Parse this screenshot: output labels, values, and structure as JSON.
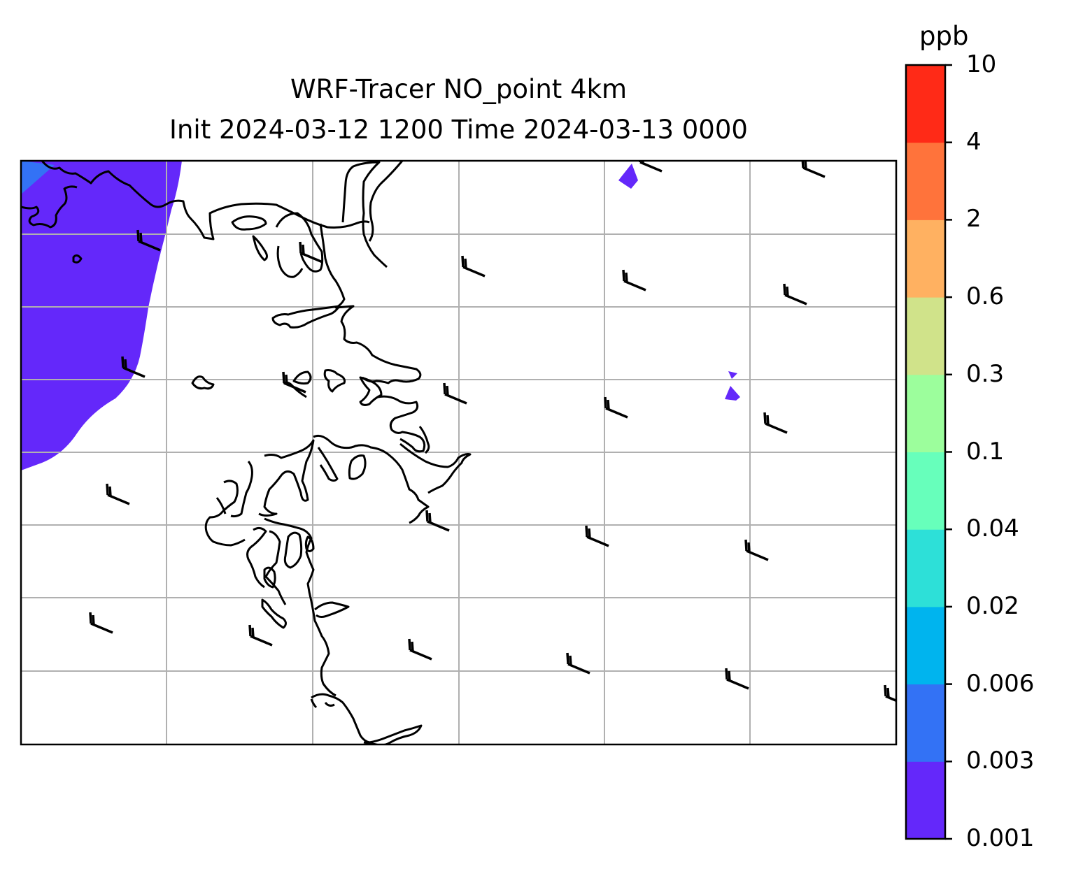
{
  "title": {
    "line1": "WRF-Tracer NO_point 4km",
    "line2": "Init 2024-03-12 1200 Time 2024-03-13 0000"
  },
  "colorbar": {
    "unit": "ppb",
    "levels": [
      "0.001",
      "0.003",
      "0.006",
      "0.02",
      "0.04",
      "0.1",
      "0.3",
      "0.6",
      "2",
      "4",
      "10"
    ],
    "colors": [
      "#6428fa",
      "#3372f5",
      "#00b4ee",
      "#2de0d8",
      "#67ffbb",
      "#9cfe9c",
      "#d0e38a",
      "#ffb161",
      "#ff733b",
      "#ff2a17"
    ]
  },
  "map": {
    "gridlines": true,
    "grid_color": "#b0b0b0",
    "coastline_color": "#000000",
    "wind_barbs": "black"
  }
}
